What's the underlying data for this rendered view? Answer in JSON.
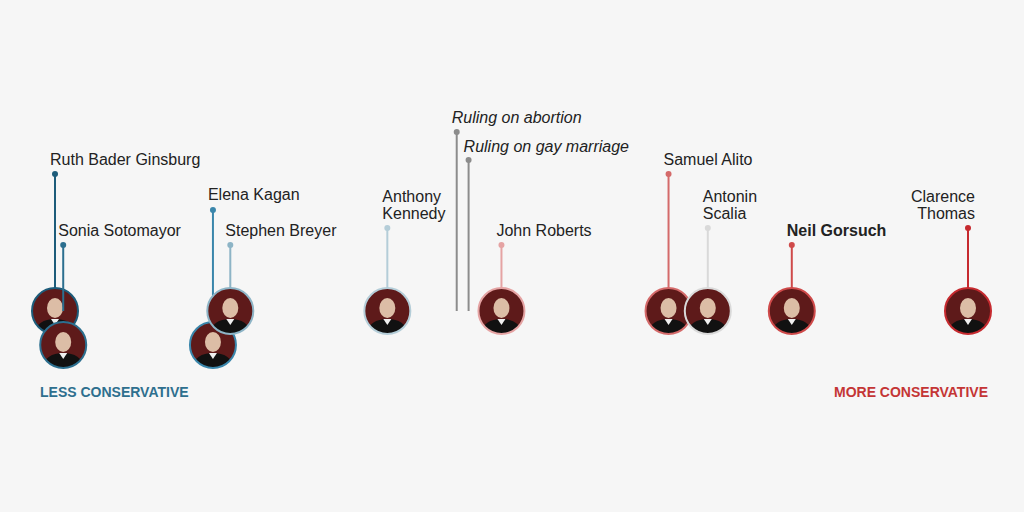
{
  "chart_data": {
    "type": "scatter",
    "categories": [
      "Ruth Bader Ginsburg",
      "Sonia Sotomayor",
      "Elena Kagan",
      "Stephen Breyer",
      "Anthony Kennedy",
      "John Roberts",
      "Samuel Alito",
      "Antonin Scalia",
      "Neil Gorsuch",
      "Clarence Thomas"
    ],
    "x": [
      0,
      0.9,
      17.3,
      19.2,
      36.4,
      48.9,
      67.2,
      71.5,
      80.7,
      100
    ],
    "colors": [
      "#1d5c7a",
      "#2c6f8f",
      "#3a86ab",
      "#8db4c6",
      "#b4cdd8",
      "#e5a3a3",
      "#d46a6a",
      "#d9d9d9",
      "#cf4a4a",
      "#c62a2f"
    ],
    "xlim": [
      0,
      100
    ],
    "tick_labels": false,
    "grid": false,
    "annotations": [
      {
        "text": "Ruling on abortion",
        "x": 44.0,
        "color": "#8c8c8c"
      },
      {
        "text": "Ruling on gay marriage",
        "x": 45.3,
        "color": "#8c8c8c"
      }
    ],
    "xlabel": {
      "left": "LESS CONSERVATIVE",
      "right": "MORE CONSERVATIVE"
    }
  }
}
